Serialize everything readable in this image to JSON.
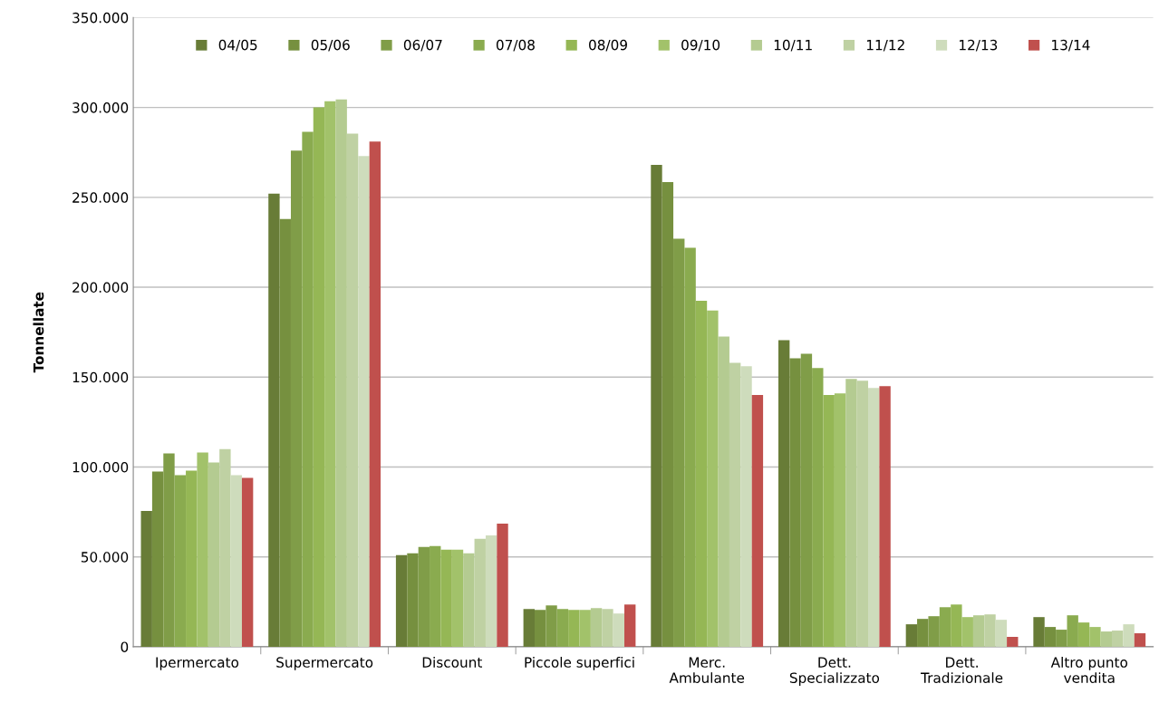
{
  "chart_data": {
    "type": "bar",
    "ylabel": "Tonnellate",
    "categories": [
      "Ipermercato",
      "Supermercato",
      "Discount",
      "Piccole superfici",
      "Merc.\nAmbulante",
      "Dett.\nSpecializzato",
      "Dett.\nTradizionale",
      "Altro punto\nvendita"
    ],
    "series": [
      {
        "name": "04/05",
        "color": "#687c37",
        "values": [
          75500,
          252000,
          51000,
          21000,
          268000,
          170500,
          12500,
          16500
        ]
      },
      {
        "name": "05/06",
        "color": "#76903f",
        "values": [
          97500,
          238000,
          52000,
          20500,
          258500,
          160500,
          15500,
          11000
        ]
      },
      {
        "name": "06/07",
        "color": "#809d48",
        "values": [
          107500,
          276000,
          55500,
          23000,
          227000,
          163000,
          17000,
          9500
        ]
      },
      {
        "name": "07/08",
        "color": "#8aab4f",
        "values": [
          95500,
          286500,
          56000,
          21000,
          222000,
          155000,
          22000,
          17500
        ]
      },
      {
        "name": "08/09",
        "color": "#95b755",
        "values": [
          98000,
          300000,
          54000,
          20500,
          192500,
          140000,
          23500,
          13500
        ]
      },
      {
        "name": "09/10",
        "color": "#a2c26a",
        "values": [
          108000,
          303500,
          54000,
          20500,
          187000,
          141000,
          16500,
          11000
        ]
      },
      {
        "name": "10/11",
        "color": "#b4cb91",
        "values": [
          102500,
          304500,
          52000,
          21500,
          172500,
          149000,
          17500,
          8500
        ]
      },
      {
        "name": "11/12",
        "color": "#bfd1a3",
        "values": [
          110000,
          285500,
          60000,
          21000,
          158000,
          148000,
          18000,
          9000
        ]
      },
      {
        "name": "12/13",
        "color": "#cedcbc",
        "values": [
          95500,
          273000,
          62000,
          18500,
          156000,
          144000,
          15000,
          12500
        ]
      },
      {
        "name": "13/14",
        "color": "#c0504d",
        "values": [
          94000,
          281000,
          68500,
          23500,
          140000,
          145000,
          5500,
          7500
        ]
      }
    ],
    "ylim": [
      0,
      350000
    ],
    "yticks": [
      {
        "value": 0,
        "label": "0"
      },
      {
        "value": 50000,
        "label": "50.000"
      },
      {
        "value": 100000,
        "label": "100.000"
      },
      {
        "value": 150000,
        "label": "150.000"
      },
      {
        "value": 200000,
        "label": "200.000"
      },
      {
        "value": 250000,
        "label": "250.000"
      },
      {
        "value": 300000,
        "label": "300.000"
      },
      {
        "value": 350000,
        "label": "350.000"
      }
    ],
    "grid": "y",
    "legend": "top"
  }
}
